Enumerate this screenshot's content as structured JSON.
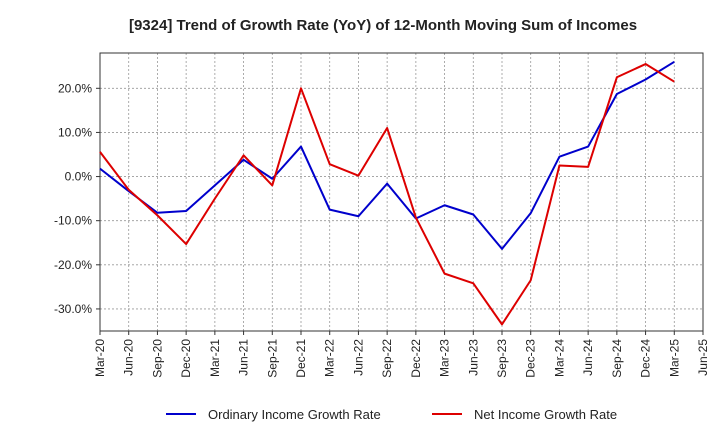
{
  "chart_data": {
    "type": "line",
    "title": "[9324]  Trend of Growth Rate (YoY) of 12-Month Moving Sum of Incomes",
    "xlabel": "",
    "ylabel": "",
    "categories": [
      "Mar-20",
      "Jun-20",
      "Sep-20",
      "Dec-20",
      "Mar-21",
      "Jun-21",
      "Sep-21",
      "Dec-21",
      "Mar-22",
      "Jun-22",
      "Sep-22",
      "Dec-22",
      "Mar-23",
      "Jun-23",
      "Sep-23",
      "Dec-23",
      "Mar-24",
      "Jun-24",
      "Sep-24",
      "Dec-24",
      "Mar-25",
      "Jun-25"
    ],
    "ylim": [
      -35,
      28
    ],
    "yticks": [
      20,
      10,
      0,
      -10,
      -20,
      -30
    ],
    "ytick_labels": [
      "20.0%",
      "10.0%",
      "0.0%",
      "-10.0%",
      "-20.0%",
      "-30.0%"
    ],
    "grid": true,
    "legend_position": "bottom",
    "series": [
      {
        "name": "Ordinary Income Growth Rate",
        "color": "#0000cc",
        "values": [
          1.8,
          -3.3,
          -8.2,
          -7.8,
          -2.0,
          3.8,
          -0.5,
          6.8,
          -7.5,
          -9.0,
          -1.6,
          -9.5,
          -6.5,
          -8.6,
          -16.4,
          -8.3,
          4.5,
          6.8,
          18.7,
          22.0,
          26.0,
          null
        ]
      },
      {
        "name": "Net Income Growth Rate",
        "color": "#dd0000",
        "values": [
          5.6,
          -3.0,
          -8.8,
          -15.3,
          -5.0,
          4.8,
          -2.0,
          20.0,
          2.8,
          0.2,
          11.0,
          -9.3,
          -22.0,
          -24.2,
          -33.5,
          -23.5,
          2.5,
          2.2,
          22.5,
          25.5,
          21.5,
          null
        ]
      }
    ]
  }
}
